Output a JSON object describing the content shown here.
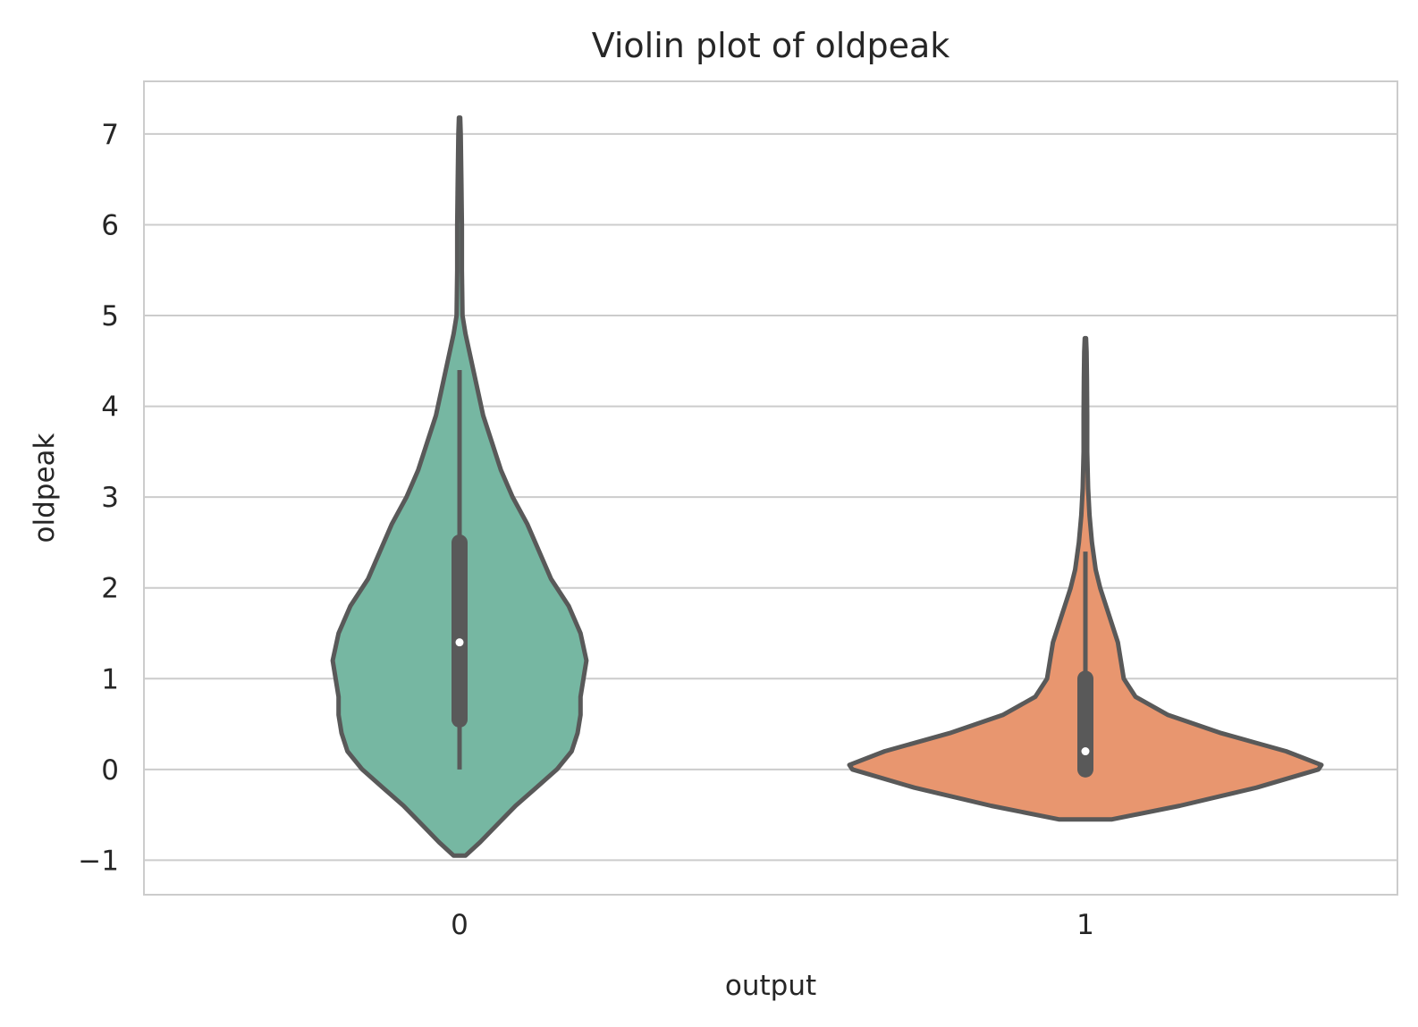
{
  "chart_data": {
    "type": "violin",
    "title": "Violin plot of oldpeak",
    "xlabel": "output",
    "ylabel": "oldpeak",
    "categories": [
      "0",
      "1"
    ],
    "ylim": [
      -1.38,
      7.58
    ],
    "yticks": [
      -1,
      0,
      1,
      2,
      3,
      4,
      5,
      6,
      7
    ],
    "ytick_labels": [
      "−1",
      "0",
      "1",
      "2",
      "3",
      "4",
      "5",
      "6",
      "7"
    ],
    "grid": "horizontal",
    "series": [
      {
        "category": "0",
        "color": "#76b7a2",
        "edge_color": "#595959",
        "box": {
          "whisker_low": 0.0,
          "q1": 0.55,
          "median": 1.4,
          "q3": 2.5,
          "whisker_high": 4.4
        },
        "density": [
          [
            -0.95,
            0.02
          ],
          [
            -0.8,
            0.07
          ],
          [
            -0.6,
            0.13
          ],
          [
            -0.4,
            0.19
          ],
          [
            -0.2,
            0.26
          ],
          [
            0.0,
            0.33
          ],
          [
            0.2,
            0.38
          ],
          [
            0.4,
            0.4
          ],
          [
            0.6,
            0.41
          ],
          [
            0.8,
            0.41
          ],
          [
            1.0,
            0.42
          ],
          [
            1.2,
            0.43
          ],
          [
            1.5,
            0.41
          ],
          [
            1.8,
            0.37
          ],
          [
            2.1,
            0.31
          ],
          [
            2.4,
            0.27
          ],
          [
            2.7,
            0.23
          ],
          [
            3.0,
            0.18
          ],
          [
            3.3,
            0.14
          ],
          [
            3.6,
            0.11
          ],
          [
            3.9,
            0.08
          ],
          [
            4.2,
            0.06
          ],
          [
            4.5,
            0.04
          ],
          [
            4.8,
            0.02
          ],
          [
            5.0,
            0.01
          ],
          [
            5.5,
            0.008
          ],
          [
            6.0,
            0.008
          ],
          [
            6.5,
            0.006
          ],
          [
            7.0,
            0.004
          ],
          [
            7.18,
            0.002
          ]
        ]
      },
      {
        "category": "1",
        "color": "#e8966f",
        "edge_color": "#595959",
        "box": {
          "whisker_low": 0.0,
          "q1": 0.0,
          "median": 0.2,
          "q3": 1.0,
          "whisker_high": 2.4
        },
        "density": [
          [
            -0.55,
            0.09
          ],
          [
            -0.4,
            0.32
          ],
          [
            -0.2,
            0.58
          ],
          [
            0.0,
            0.79
          ],
          [
            0.05,
            0.8
          ],
          [
            0.2,
            0.68
          ],
          [
            0.4,
            0.46
          ],
          [
            0.6,
            0.28
          ],
          [
            0.8,
            0.17
          ],
          [
            1.0,
            0.13
          ],
          [
            1.2,
            0.12
          ],
          [
            1.4,
            0.11
          ],
          [
            1.6,
            0.09
          ],
          [
            1.8,
            0.07
          ],
          [
            2.0,
            0.05
          ],
          [
            2.2,
            0.035
          ],
          [
            2.5,
            0.022
          ],
          [
            2.8,
            0.014
          ],
          [
            3.1,
            0.009
          ],
          [
            3.5,
            0.006
          ],
          [
            3.9,
            0.006
          ],
          [
            4.3,
            0.005
          ],
          [
            4.6,
            0.004
          ],
          [
            4.75,
            0.002
          ]
        ]
      }
    ]
  }
}
